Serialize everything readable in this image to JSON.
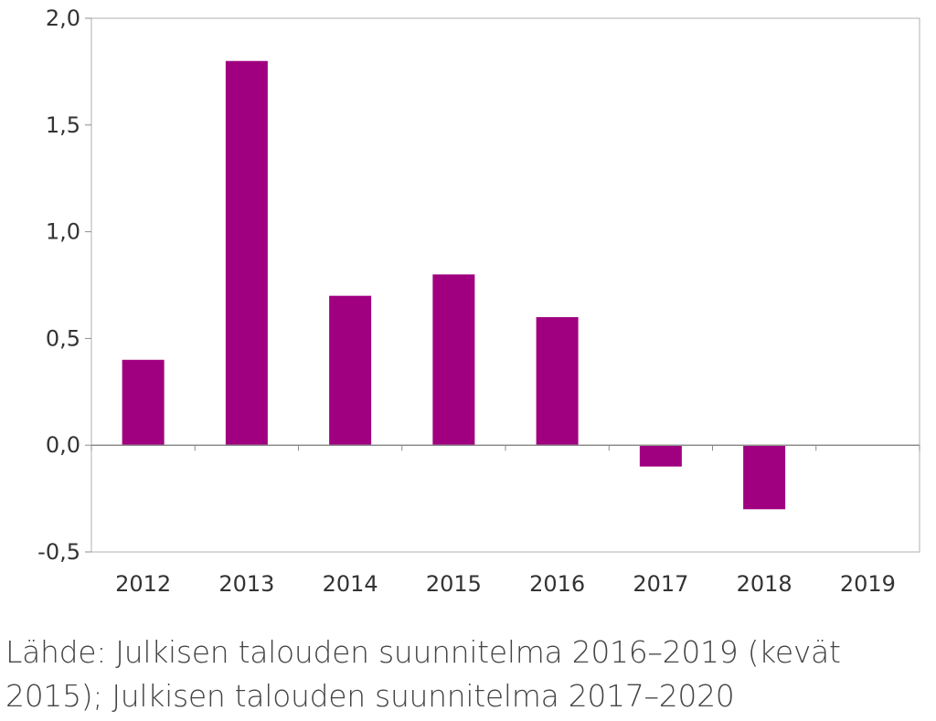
{
  "chart_data": {
    "type": "bar",
    "categories": [
      "2012",
      "2013",
      "2014",
      "2015",
      "2016",
      "2017",
      "2018",
      "2019"
    ],
    "values": [
      0.4,
      1.8,
      0.7,
      0.8,
      0.6,
      -0.1,
      -0.3,
      0
    ],
    "y_ticks": [
      "2,0",
      "1,5",
      "1,0",
      "0,5",
      "0,0",
      "-0,5"
    ],
    "ylim": [
      -0.5,
      2.0
    ],
    "grid": false,
    "legend": "none",
    "bar_color": "#a0007f"
  },
  "source_text": "Lähde: Julkisen talouden suunnitelma 2016–2019 (kevät 2015); Julkisen talouden suunnitelma 2017–2020"
}
